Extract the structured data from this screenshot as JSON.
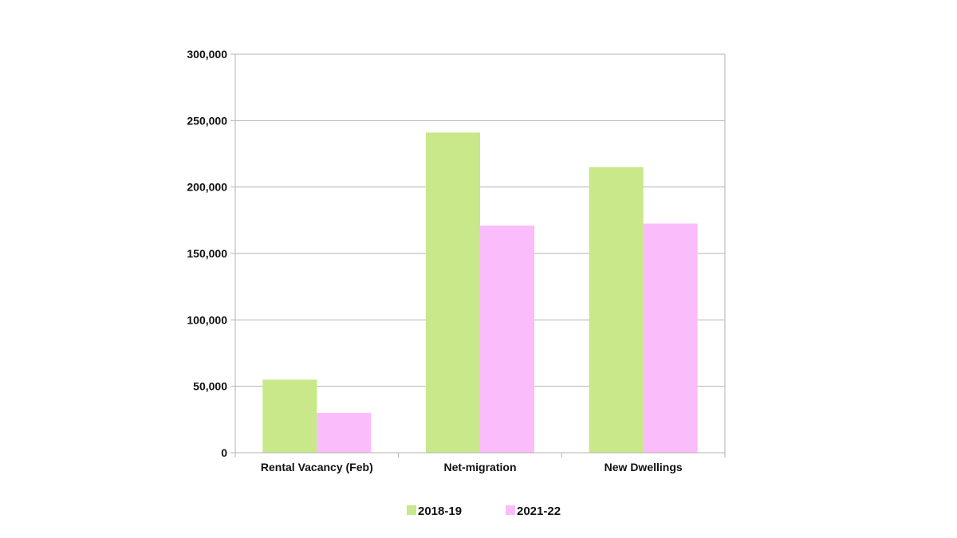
{
  "chart_data": {
    "type": "bar",
    "categories": [
      "Rental Vacancy (Feb)",
      "Net-migration",
      "New Dwellings"
    ],
    "series": [
      {
        "name": "2018-19",
        "color": "#c8e88a",
        "values": [
          55000,
          241000,
          215000
        ]
      },
      {
        "name": "2021-22",
        "color": "#fbbcfb",
        "values": [
          30000,
          171000,
          172500
        ]
      }
    ],
    "title": "",
    "xlabel": "",
    "ylabel": "",
    "ylim": [
      0,
      300000
    ],
    "yticks": [
      0,
      50000,
      100000,
      150000,
      200000,
      250000,
      300000
    ],
    "ytick_labels": [
      "0",
      "50,000",
      "100,000",
      "150,000",
      "200,000",
      "250,000",
      "300,000"
    ],
    "grid": true,
    "legend_position": "bottom"
  }
}
